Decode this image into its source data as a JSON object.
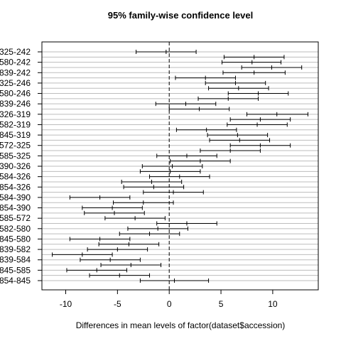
{
  "chart_data": {
    "type": "tukey-hsd-intervals",
    "title": "95% family-wise confidence level",
    "xlabel": "Differences in mean levels of factor(dataset$accession)",
    "xlim": [
      -12.3,
      14.4
    ],
    "x_ticks": [
      -10,
      -5,
      0,
      5,
      10
    ],
    "reference_line": 0,
    "comparisons_total": 45,
    "grid_lines": "horizontal",
    "labeled_comparisons": [
      {
        "row": 1,
        "label": "325-242"
      },
      {
        "row": 3,
        "label": "580-242"
      },
      {
        "row": 5,
        "label": "839-242"
      },
      {
        "row": 7,
        "label": "325-246"
      },
      {
        "row": 9,
        "label": "580-246"
      },
      {
        "row": 11,
        "label": "839-246"
      },
      {
        "row": 13,
        "label": "326-319"
      },
      {
        "row": 15,
        "label": "582-319"
      },
      {
        "row": 17,
        "label": "845-319"
      },
      {
        "row": 19,
        "label": "572-325"
      },
      {
        "row": 21,
        "label": "585-325"
      },
      {
        "row": 23,
        "label": "390-326"
      },
      {
        "row": 25,
        "label": "584-326"
      },
      {
        "row": 27,
        "label": "854-326"
      },
      {
        "row": 29,
        "label": "584-390"
      },
      {
        "row": 31,
        "label": "854-390"
      },
      {
        "row": 33,
        "label": "585-572"
      },
      {
        "row": 35,
        "label": "582-580"
      },
      {
        "row": 37,
        "label": "845-580"
      },
      {
        "row": 39,
        "label": "839-582"
      },
      {
        "row": 41,
        "label": "839-584"
      },
      {
        "row": 43,
        "label": "845-585"
      },
      {
        "row": 45,
        "label": "854-845"
      }
    ],
    "intervals": [
      {
        "lwr": -3.2,
        "diff": -0.3,
        "upr": 2.6
      },
      {
        "lwr": 5.3,
        "diff": 8.2,
        "upr": 11.1
      },
      {
        "lwr": 5.1,
        "diff": 8.0,
        "upr": 10.8
      },
      {
        "lwr": 7.0,
        "diff": 9.9,
        "upr": 12.8
      },
      {
        "lwr": 5.2,
        "diff": 8.2,
        "upr": 11.2
      },
      {
        "lwr": 0.6,
        "diff": 3.5,
        "upr": 6.4
      },
      {
        "lwr": 3.5,
        "diff": 6.4,
        "upr": 9.3
      },
      {
        "lwr": 3.8,
        "diff": 6.7,
        "upr": 9.6
      },
      {
        "lwr": 5.7,
        "diff": 8.6,
        "upr": 11.5
      },
      {
        "lwr": 2.8,
        "diff": 5.7,
        "upr": 8.6
      },
      {
        "lwr": -1.3,
        "diff": 1.6,
        "upr": 4.5
      },
      {
        "lwr": 0.0,
        "diff": 2.9,
        "upr": 5.8
      },
      {
        "lwr": 7.5,
        "diff": 10.4,
        "upr": 13.4
      },
      {
        "lwr": 5.9,
        "diff": 8.8,
        "upr": 11.7
      },
      {
        "lwr": 5.6,
        "diff": 8.5,
        "upr": 11.4
      },
      {
        "lwr": 0.7,
        "diff": 3.6,
        "upr": 6.5
      },
      {
        "lwr": 3.7,
        "diff": 6.6,
        "upr": 9.5
      },
      {
        "lwr": 3.9,
        "diff": 6.8,
        "upr": 9.7
      },
      {
        "lwr": 5.9,
        "diff": 8.8,
        "upr": 11.7
      },
      {
        "lwr": 3.0,
        "diff": 5.9,
        "upr": 8.8
      },
      {
        "lwr": -1.2,
        "diff": 1.7,
        "upr": 4.6
      },
      {
        "lwr": 0.1,
        "diff": 3.0,
        "upr": 5.9
      },
      {
        "lwr": -2.6,
        "diff": 0.3,
        "upr": 3.2
      },
      {
        "lwr": -2.8,
        "diff": 0.1,
        "upr": 3.0
      },
      {
        "lwr": -1.9,
        "diff": 1.0,
        "upr": 3.9
      },
      {
        "lwr": -4.6,
        "diff": -1.7,
        "upr": 1.2
      },
      {
        "lwr": -4.4,
        "diff": -1.5,
        "upr": 1.4
      },
      {
        "lwr": -2.5,
        "diff": 0.4,
        "upr": 3.3
      },
      {
        "lwr": -9.6,
        "diff": -6.7,
        "upr": -3.8
      },
      {
        "lwr": -5.4,
        "diff": -2.5,
        "upr": 0.4
      },
      {
        "lwr": -8.4,
        "diff": -5.5,
        "upr": -2.6
      },
      {
        "lwr": -8.2,
        "diff": -5.3,
        "upr": -2.4
      },
      {
        "lwr": -6.2,
        "diff": -3.3,
        "upr": -0.4
      },
      {
        "lwr": -1.2,
        "diff": 1.7,
        "upr": 4.6
      },
      {
        "lwr": -4.0,
        "diff": -1.1,
        "upr": 1.8
      },
      {
        "lwr": -4.8,
        "diff": -1.9,
        "upr": 1.0
      },
      {
        "lwr": -9.6,
        "diff": -6.7,
        "upr": -3.8
      },
      {
        "lwr": -6.8,
        "diff": -3.9,
        "upr": -1.0
      },
      {
        "lwr": -7.9,
        "diff": -5.0,
        "upr": -2.1
      },
      {
        "lwr": -11.3,
        "diff": -8.4,
        "upr": -5.5
      },
      {
        "lwr": -8.6,
        "diff": -5.7,
        "upr": -2.8
      },
      {
        "lwr": -6.6,
        "diff": -3.7,
        "upr": -0.8
      },
      {
        "lwr": -9.9,
        "diff": -7.0,
        "upr": -4.1
      },
      {
        "lwr": -7.7,
        "diff": -4.8,
        "upr": -1.9
      },
      {
        "lwr": -2.8,
        "diff": 0.5,
        "upr": 3.8
      }
    ]
  }
}
